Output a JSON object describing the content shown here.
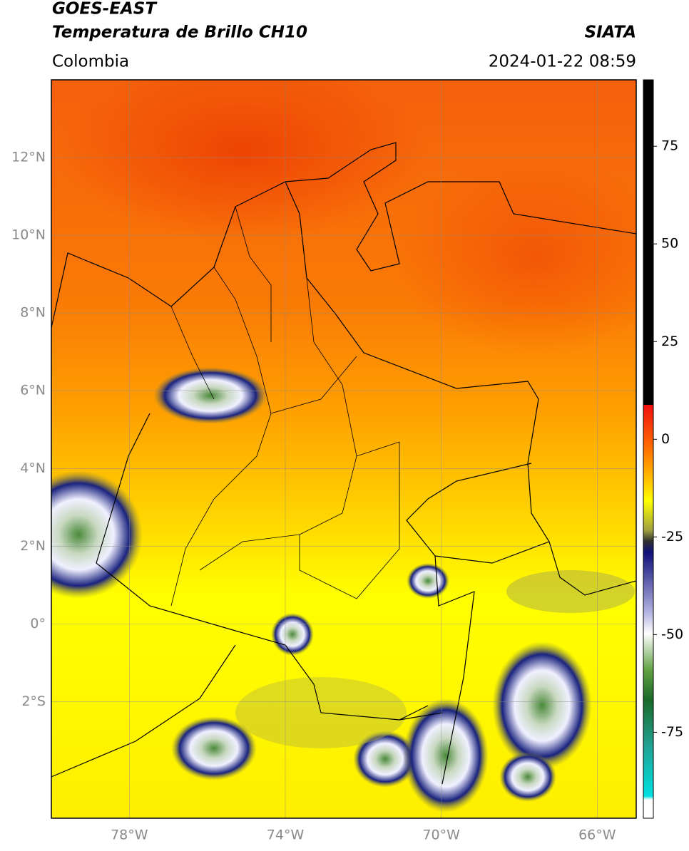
{
  "header": {
    "title_line1": "GOES-EAST",
    "title_line2": "Temperatura de Brillo CH10",
    "region": "Colombia",
    "source": "SIATA",
    "datetime": "2024-01-22 08:59"
  },
  "map": {
    "xlim": [
      -80,
      -65
    ],
    "ylim": [
      -5,
      14
    ],
    "xticks": [
      {
        "value": -78,
        "label": "78°W"
      },
      {
        "value": -74,
        "label": "74°W"
      },
      {
        "value": -70,
        "label": "70°W"
      },
      {
        "value": -66,
        "label": "66°W"
      }
    ],
    "yticks": [
      {
        "value": 12,
        "label": "12°N"
      },
      {
        "value": 10,
        "label": "10°N"
      },
      {
        "value": 8,
        "label": "8°N"
      },
      {
        "value": 6,
        "label": "6°N"
      },
      {
        "value": 4,
        "label": "4°N"
      },
      {
        "value": 2,
        "label": "2°N"
      },
      {
        "value": 0,
        "label": "0°"
      },
      {
        "value": -2,
        "label": "2°S"
      }
    ]
  },
  "colorbar": {
    "lim": [
      -97,
      92
    ],
    "ticks": [
      75,
      50,
      25,
      0,
      -25,
      -50,
      -75
    ]
  }
}
